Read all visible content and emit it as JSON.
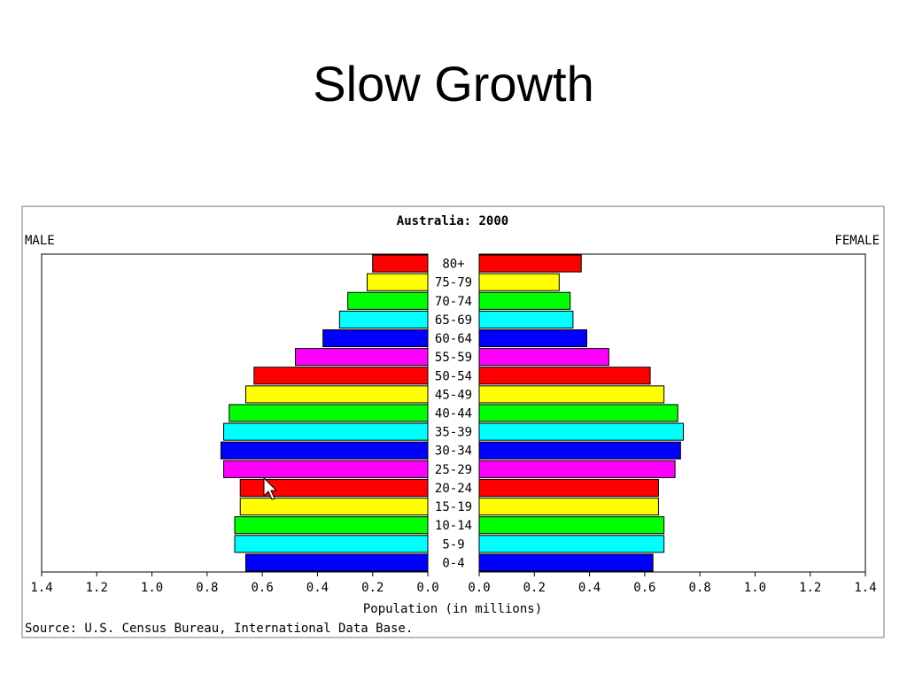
{
  "slide": {
    "title": "Slow Growth"
  },
  "chart_data": {
    "type": "bar",
    "subtype": "population-pyramid",
    "title": "Australia: 2000",
    "left_label": "MALE",
    "right_label": "FEMALE",
    "xlabel": "Population (in millions)",
    "source": "Source: U.S. Census Bureau, International Data Base.",
    "xlim": [
      0,
      1.4
    ],
    "x_ticks": [
      "1.4",
      "1.2",
      "1.0",
      "0.8",
      "0.6",
      "0.4",
      "0.2",
      "0.0",
      "0.0",
      "0.2",
      "0.4",
      "0.6",
      "0.8",
      "1.0",
      "1.2",
      "1.4"
    ],
    "categories": [
      "80+",
      "75-79",
      "70-74",
      "65-69",
      "60-64",
      "55-59",
      "50-54",
      "45-49",
      "40-44",
      "35-39",
      "30-34",
      "25-29",
      "20-24",
      "15-19",
      "10-14",
      "5-9",
      "0-4"
    ],
    "colors": [
      "#ff0000",
      "#ffff00",
      "#00ff00",
      "#00ffff",
      "#0000ff",
      "#ff00ff",
      "#ff0000",
      "#ffff00",
      "#00ff00",
      "#00ffff",
      "#0000ff",
      "#ff00ff",
      "#ff0000",
      "#ffff00",
      "#00ff00",
      "#00ffff",
      "#0000ff"
    ],
    "series": [
      {
        "name": "MALE",
        "values": [
          0.2,
          0.22,
          0.29,
          0.32,
          0.38,
          0.48,
          0.63,
          0.66,
          0.72,
          0.74,
          0.75,
          0.74,
          0.68,
          0.68,
          0.7,
          0.7,
          0.66
        ]
      },
      {
        "name": "FEMALE",
        "values": [
          0.37,
          0.29,
          0.33,
          0.34,
          0.39,
          0.47,
          0.62,
          0.67,
          0.72,
          0.74,
          0.73,
          0.71,
          0.65,
          0.65,
          0.67,
          0.67,
          0.63
        ]
      }
    ],
    "grid": false,
    "annotation_cursor": "mouse-pointer"
  }
}
